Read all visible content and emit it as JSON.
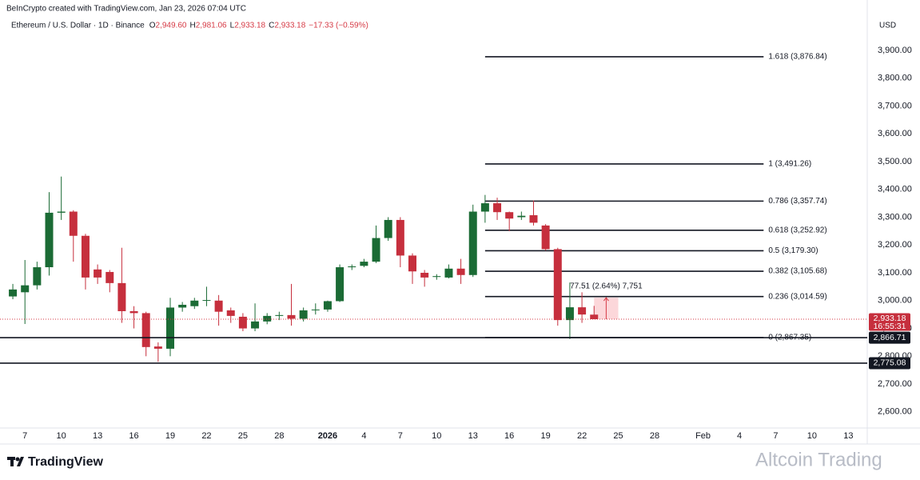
{
  "chart_data": {
    "type": "candlestick",
    "credit": "BeInCrypto created with TradingView.com, Jan 23, 2026 07:04 UTC",
    "symbol": "Ethereum / U.S. Dollar · 1D · Binance",
    "ohlc_legend": [
      {
        "key": "O",
        "value": "2,949.60"
      },
      {
        "key": "H",
        "value": "2,981.06"
      },
      {
        "key": "L",
        "value": "2,933.18"
      },
      {
        "key": "C",
        "value": "2,933.18"
      }
    ],
    "change": "−17.33 (−0.59%)",
    "currency": "USD",
    "brand": "TradingView",
    "watermark": "Altcoin Trading",
    "up_color": "#1b6b35",
    "down_color": "#c62f3d",
    "x": [
      -25,
      -24,
      -23,
      -22,
      -21,
      -20,
      -19,
      -18,
      -17,
      -16,
      -15,
      -14,
      -13,
      -12,
      -11,
      -10,
      -9,
      -8,
      -7,
      -6,
      -5,
      -4,
      -3,
      -2,
      -1,
      0,
      1,
      2,
      3,
      4,
      5,
      6,
      7,
      8,
      9,
      10,
      11,
      12,
      13,
      14,
      15,
      16,
      17,
      18,
      19,
      20,
      21,
      22,
      23
    ],
    "open": [
      3015,
      3030,
      3055,
      3120,
      3316,
      3320,
      3233,
      3112,
      3103,
      3063,
      2962,
      2955,
      2835,
      2827,
      2975,
      2980,
      3000,
      3000,
      2965,
      2942,
      2900,
      2925,
      2945,
      2948,
      2935,
      2966,
      2968,
      2998,
      3120,
      3125,
      3140,
      3225,
      3290,
      3162,
      3100,
      3085,
      3083,
      3115,
      3092,
      3320,
      3350,
      3318,
      3300,
      3307,
      3270,
      3185,
      2930,
      2976,
      2949.6
    ],
    "high": [
      3060,
      3146,
      3140,
      3390,
      3446,
      3325,
      3240,
      3130,
      3110,
      3190,
      2980,
      2960,
      2850,
      3010,
      2995,
      3010,
      3050,
      3020,
      2975,
      2955,
      2990,
      2955,
      2960,
      3060,
      2975,
      2990,
      3000,
      3130,
      3130,
      3150,
      3270,
      3300,
      3300,
      3170,
      3110,
      3095,
      3130,
      3150,
      3345,
      3380,
      3370,
      3320,
      3320,
      3360,
      3275,
      3190,
      3065,
      3030,
      2981.06
    ],
    "low": [
      3005,
      2916,
      3040,
      3090,
      3290,
      3140,
      3040,
      3060,
      3030,
      2920,
      2900,
      2800,
      2780,
      2800,
      2960,
      2970,
      2980,
      2910,
      2920,
      2890,
      2890,
      2915,
      2930,
      2910,
      2925,
      2950,
      2960,
      2995,
      3110,
      3120,
      3135,
      3215,
      3120,
      3060,
      3050,
      3075,
      3080,
      3060,
      3085,
      3280,
      3290,
      3250,
      3290,
      3270,
      3180,
      2910,
      2862,
      2920,
      2933.18
    ],
    "close": [
      3040,
      3055,
      3120,
      3316,
      3320,
      3233,
      3083,
      3083,
      3063,
      2962,
      2955,
      2833,
      2827,
      2975,
      2985,
      3000,
      3002,
      2960,
      2945,
      2900,
      2925,
      2945,
      2948,
      2935,
      2965,
      2968,
      2998,
      3120,
      3123,
      3140,
      3225,
      3290,
      3162,
      3105,
      3083,
      3088,
      3115,
      3092,
      3320,
      3350,
      3318,
      3295,
      3305,
      3280,
      3185,
      2930,
      2976,
      2950,
      2933.18
    ],
    "xlim": [
      -26.06,
      45.56
    ],
    "ylim": [
      2542,
      4052
    ],
    "xticks": [
      {
        "value": -24,
        "label": "7"
      },
      {
        "value": -21,
        "label": "10"
      },
      {
        "value": -18,
        "label": "13"
      },
      {
        "value": -15,
        "label": "16"
      },
      {
        "value": -12,
        "label": "19"
      },
      {
        "value": -9,
        "label": "22"
      },
      {
        "value": -6,
        "label": "25"
      },
      {
        "value": -3,
        "label": "28"
      },
      {
        "value": 1,
        "label": "2026"
      },
      {
        "value": 4,
        "label": "4"
      },
      {
        "value": 7,
        "label": "7"
      },
      {
        "value": 10,
        "label": "10"
      },
      {
        "value": 13,
        "label": "13"
      },
      {
        "value": 16,
        "label": "16"
      },
      {
        "value": 19,
        "label": "19"
      },
      {
        "value": 22,
        "label": "22"
      },
      {
        "value": 25,
        "label": "25"
      },
      {
        "value": 28,
        "label": "28"
      },
      {
        "value": 32,
        "label": "Feb"
      },
      {
        "value": 35,
        "label": "4"
      },
      {
        "value": 38,
        "label": "7"
      },
      {
        "value": 41,
        "label": "10"
      },
      {
        "value": 44,
        "label": "13"
      }
    ],
    "yticks": [
      {
        "value": 2600,
        "label": "2,600.00"
      },
      {
        "value": 2700,
        "label": "2,700.00"
      },
      {
        "value": 2800,
        "label": "2,800.00"
      },
      {
        "value": 2900,
        "label": "2,900.00"
      },
      {
        "value": 3000,
        "label": "3,000.00"
      },
      {
        "value": 3100,
        "label": "3,100.00"
      },
      {
        "value": 3200,
        "label": "3,200.00"
      },
      {
        "value": 3300,
        "label": "3,300.00"
      },
      {
        "value": 3400,
        "label": "3,400.00"
      },
      {
        "value": 3500,
        "label": "3,500.00"
      },
      {
        "value": 3600,
        "label": "3,600.00"
      },
      {
        "value": 3700,
        "label": "3,700.00"
      },
      {
        "value": 3800,
        "label": "3,800.00"
      },
      {
        "value": 3900,
        "label": "3,900.00"
      }
    ],
    "fib_x_range": [
      14,
      37
    ],
    "fib_levels": [
      {
        "value": 3876.84,
        "label": "1.618 (3,876.84)"
      },
      {
        "value": 3491.26,
        "label": "1 (3,491.26)"
      },
      {
        "value": 3357.74,
        "label": "0.786 (3,357.74)"
      },
      {
        "value": 3252.92,
        "label": "0.618 (3,252.92)"
      },
      {
        "value": 3179.3,
        "label": "0.5 (3,179.30)"
      },
      {
        "value": 3105.68,
        "label": "0.382 (3,105.68)"
      },
      {
        "value": 3014.59,
        "label": "0.236 (3,014.59)"
      },
      {
        "value": 2867.35,
        "label": "0 (2,867.35)"
      }
    ],
    "hlines": [
      {
        "value": 2866.71,
        "label": "2,866.71"
      },
      {
        "value": 2775.08,
        "label": "2,775.08"
      }
    ],
    "last_price": {
      "value": 2933.18,
      "label": "2,933.18",
      "countdown": "16:55:31"
    },
    "measure": {
      "text": "77.51 (2.64%) 7,751",
      "x": [
        23,
        25
      ],
      "y": [
        2933.18,
        3010.69
      ]
    }
  }
}
